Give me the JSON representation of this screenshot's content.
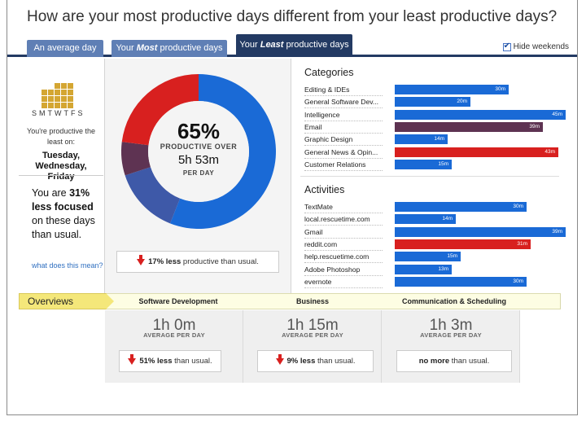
{
  "title": "How are your most productive days different from your least productive days?",
  "tabs": [
    {
      "label": "An average day",
      "active": false
    },
    {
      "label_pre": "Your ",
      "label_em": "Most",
      "label_post": " productive days",
      "active": false
    },
    {
      "label_pre": "Your ",
      "label_em": "Least",
      "label_post": " productive days",
      "active": true
    }
  ],
  "hide_weekends": {
    "label": "Hide weekends",
    "checked": true
  },
  "left": {
    "weekdays": "SMTWTFS",
    "least_on": "You're productive the least on:",
    "least_days": [
      "Tuesday,",
      "Wednesday,",
      "Friday"
    ],
    "summary_pre": "You are ",
    "summary_bold": "31% less focused",
    "summary_post": " on these days than usual.",
    "link": "what does this mean?"
  },
  "donut": {
    "percent": "65%",
    "label1": "PRODUCTIVE OVER",
    "time": "5h 53m",
    "label2": "PER DAY",
    "segments": [
      {
        "name": "productive",
        "fraction": 0.56,
        "color": "#1a6ad6"
      },
      {
        "name": "neutral-blue",
        "fraction": 0.14,
        "color": "#3e59a8"
      },
      {
        "name": "neutral-purple",
        "fraction": 0.07,
        "color": "#5e3352"
      },
      {
        "name": "distracting",
        "fraction": 0.23,
        "color": "#d8201f"
      }
    ],
    "compare_bold": "17% less",
    "compare_rest": " productive than usual."
  },
  "categories": {
    "title": "Categories",
    "items": [
      {
        "label": "Editing & IDEs",
        "value": "30m",
        "minutes": 30,
        "color": "#1a6ad6"
      },
      {
        "label": "General Software Dev...",
        "value": "20m",
        "minutes": 20,
        "color": "#1a6ad6"
      },
      {
        "label": "Intelligence",
        "value": "45m",
        "minutes": 45,
        "color": "#1a6ad6"
      },
      {
        "label": "Email",
        "value": "39m",
        "minutes": 39,
        "color": "#5e3352"
      },
      {
        "label": "Graphic Design",
        "value": "14m",
        "minutes": 14,
        "color": "#1a6ad6"
      },
      {
        "label": "General News & Opin...",
        "value": "43m",
        "minutes": 43,
        "color": "#d8201f"
      },
      {
        "label": "Customer Relations",
        "value": "15m",
        "minutes": 15,
        "color": "#1a6ad6"
      }
    ]
  },
  "activities": {
    "title": "Activities",
    "items": [
      {
        "label": "TextMate",
        "value": "30m",
        "minutes": 30,
        "color": "#1a6ad6"
      },
      {
        "label": "local.rescuetime.com",
        "value": "14m",
        "minutes": 14,
        "color": "#1a6ad6"
      },
      {
        "label": "Gmail",
        "value": "39m",
        "minutes": 39,
        "color": "#1a6ad6"
      },
      {
        "label": "reddit.com",
        "value": "31m",
        "minutes": 31,
        "color": "#d8201f"
      },
      {
        "label": "help.rescuetime.com",
        "value": "15m",
        "minutes": 15,
        "color": "#1a6ad6"
      },
      {
        "label": "Adobe Photoshop",
        "value": "13m",
        "minutes": 13,
        "color": "#1a6ad6"
      },
      {
        "label": "evernote",
        "value": "30m",
        "minutes": 30,
        "color": "#1a6ad6"
      }
    ]
  },
  "overviews": {
    "label": "Overviews",
    "columns": [
      {
        "name": "Software Development",
        "time": "1h 0m",
        "avg": "AVERAGE PER DAY",
        "bold": "51% less",
        "rest": " than usual.",
        "down": true
      },
      {
        "name": "Business",
        "time": "1h 15m",
        "avg": "AVERAGE PER DAY",
        "bold": "9% less",
        "rest": " than usual.",
        "down": true
      },
      {
        "name": "Communication & Scheduling",
        "time": "1h 3m",
        "avg": "AVERAGE PER DAY",
        "bold": "no more",
        "rest": " than usual.",
        "down": false
      }
    ]
  }
}
